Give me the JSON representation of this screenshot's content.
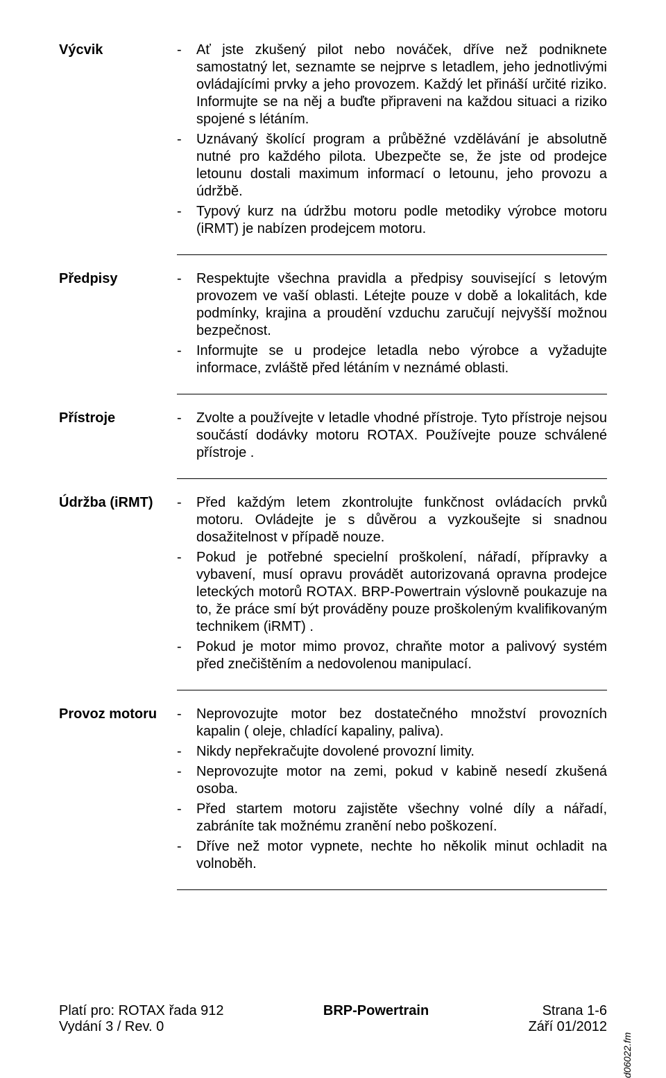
{
  "sections": [
    {
      "label": "Výcvik",
      "groups": [
        {
          "bullets": [
            "Ať jste zkušený pilot nebo nováček, dříve než podniknete samostatný let, seznamte se nejprve s letadlem, jeho jednotlivými ovládajícími prvky a jeho provozem. Každý let přináší určité riziko. Informujte se na něj a buďte připraveni na každou situaci a riziko spojené s létáním.",
            "Uznávaný školící program a průběžné vzdělávání je absolutně nutné pro každého pilota. Ubezpečte se, že jste od prodejce letounu dostali maximum informací o letounu, jeho provozu a údržbě.",
            "Typový kurz na údržbu motoru podle metodiky výrobce motoru (iRMT) je nabízen prodejcem motoru."
          ]
        }
      ]
    },
    {
      "label": "Předpisy",
      "groups": [
        {
          "bullets": [
            "Respektujte všechna pravidla a předpisy související s letovým provozem ve vaší oblasti. Létejte pouze v době a lokalitách, kde podmínky, krajina a proudění vzduchu zaručují nejvyšší možnou bezpečnost.",
            "Informujte se u prodejce letadla nebo výrobce a vyžadujte informace, zvláště před létáním v neznámé oblasti."
          ]
        }
      ]
    },
    {
      "label": "Přístroje",
      "groups": [
        {
          "bullets": [
            "Zvolte a používejte v letadle vhodné přístroje. Tyto přístroje nejsou součástí dodávky motoru ROTAX. Používejte pouze schválené přístroje ."
          ]
        }
      ]
    },
    {
      "label": "Údržba (iRMT)",
      "groups": [
        {
          "bullets": [
            "Před každým letem zkontrolujte funkčnost ovládacích prvků motoru. Ovládejte je s důvěrou a vyzkoušejte si snadnou dosažitelnost v případě nouze.",
            "Pokud je potřebné specielní proškolení, nářadí, přípravky a vybavení, musí opravu provádět autorizovaná opravna prodejce leteckých motorů ROTAX. BRP-Powertrain výslovně poukazuje na to, že práce smí být prováděny pouze proškoleným kvalifikovaným technikem (iRMT) .",
            "Pokud je motor mimo provoz, chraňte motor a palivový systém před znečištěním a nedovolenou manipulací."
          ]
        }
      ]
    },
    {
      "label": "Provoz motoru",
      "groups": [
        {
          "bullets": [
            "Neprovozujte motor bez dostatečného množství provozních kapalin ( oleje, chladící kapaliny, paliva).",
            "Nikdy nepřekračujte dovolené provozní limity.",
            "Neprovozujte motor na zemi, pokud v kabině nesedí zkušená osoba.",
            "Před startem motoru zajistěte všechny volné díly a nářadí, zabráníte tak možnému zranění nebo poškození.",
            "Dříve než motor vypnete, nechte ho několik minut ochladit na volnoběh."
          ]
        }
      ]
    }
  ],
  "footer": {
    "left_line1": "Platí pro: ROTAX řada 912",
    "left_line2": "Vydání 3 / Rev. 0",
    "center": "BRP-Powertrain",
    "right_line1": "Strana 1-6",
    "right_line2": "Září 01/2012"
  },
  "side_text": "d06022.fm",
  "style": {
    "page_bg": "#ffffff",
    "text_color": "#000000",
    "font_size_pt": 20,
    "line_height": 1.25,
    "divider_color": "#000000"
  }
}
